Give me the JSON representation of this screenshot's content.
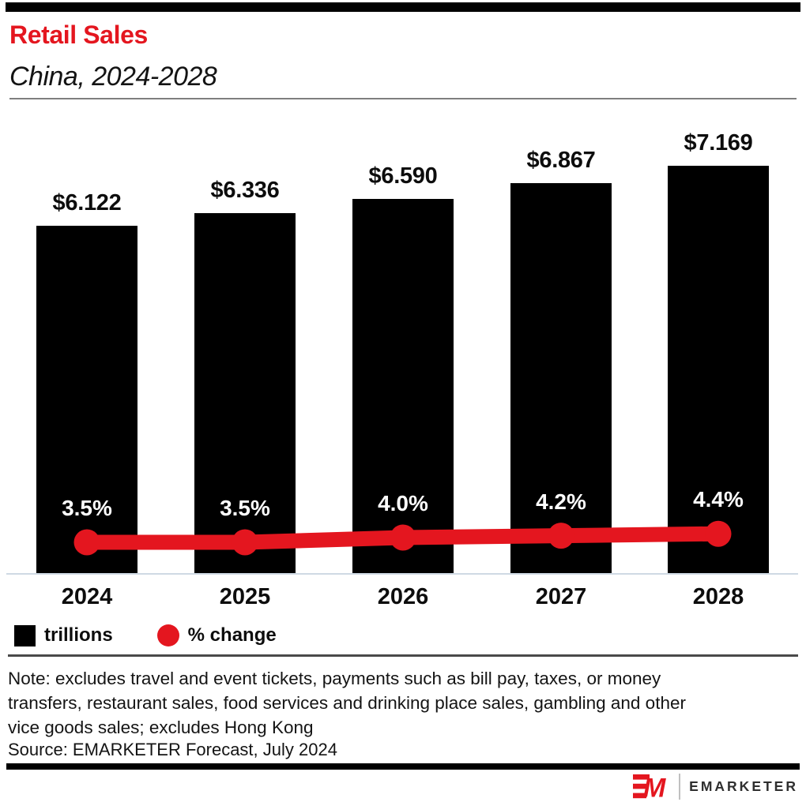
{
  "header": {
    "title": "Retail Sales",
    "subtitle": "China, 2024-2028"
  },
  "colors": {
    "accent_red": "#e4161f",
    "bar_black": "#000000",
    "axis_line": "#cfd9e4"
  },
  "chart_data": {
    "type": "bar",
    "combo": "bar+line",
    "title": "Retail Sales",
    "subtitle": "China, 2024-2028",
    "categories": [
      "2024",
      "2025",
      "2026",
      "2027",
      "2028"
    ],
    "series": [
      {
        "name": "trillions",
        "type": "bar",
        "color": "#000000",
        "value_prefix": "$",
        "values": [
          6.122,
          6.336,
          6.59,
          6.867,
          7.169
        ],
        "labels": [
          "$6.122",
          "$6.336",
          "$6.590",
          "$6.867",
          "$7.169"
        ]
      },
      {
        "name": "% change",
        "type": "line",
        "color": "#e4161f",
        "value_suffix": "%",
        "values": [
          3.5,
          3.5,
          4.0,
          4.2,
          4.4
        ],
        "labels": [
          "3.5%",
          "3.5%",
          "4.0%",
          "4.2%",
          "4.4%"
        ]
      }
    ],
    "legend": [
      {
        "label": "trillions",
        "shape": "square",
        "color": "#000000"
      },
      {
        "label": "% change",
        "shape": "circle",
        "color": "#e4161f"
      }
    ],
    "legend_position": "bottom-left",
    "grid": false,
    "y_axis_shown": false,
    "bar_value_labels_position": "above",
    "line_value_labels_position": "above-line-inside-bar"
  },
  "footer": {
    "note_lines": [
      "Note: excludes travel and event tickets, payments such as bill pay, taxes, or money",
      "transfers, restaurant sales, food services and drinking place sales, gambling and other",
      "vice goods sales; excludes Hong Kong"
    ],
    "source": "Source: EMARKETER Forecast, July 2024",
    "logo_text": "EMARKETER"
  }
}
